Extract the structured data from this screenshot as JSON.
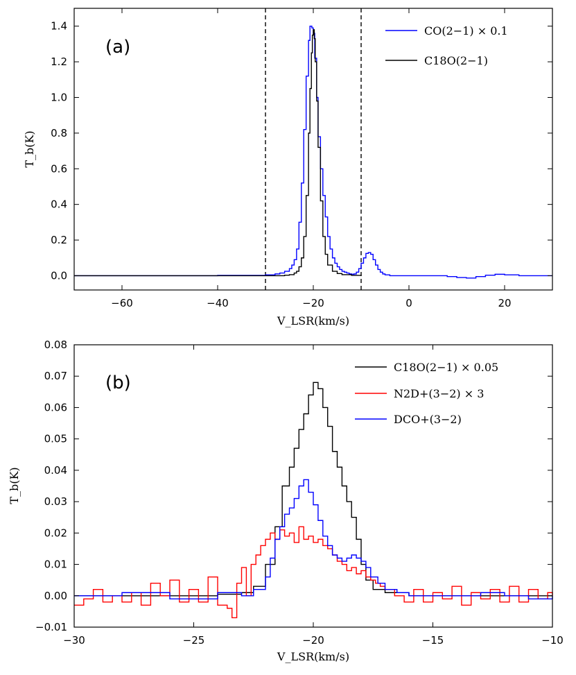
{
  "chart_data": [
    {
      "type": "line",
      "panel_label": "(a)",
      "xlabel": "V_LSR(km/s)",
      "ylabel": "T_b(K)",
      "xlim": [
        -70,
        30
      ],
      "ylim": [
        -0.08,
        1.5
      ],
      "xticks": [
        -60,
        -40,
        -20,
        0,
        20
      ],
      "xtick_labels": [
        "−60",
        "−40",
        "−20",
        "0",
        "20"
      ],
      "yticks": [
        0.0,
        0.2,
        0.4,
        0.6,
        0.8,
        1.0,
        1.2,
        1.4
      ],
      "ytick_labels": [
        "0.0",
        "0.2",
        "0.4",
        "0.6",
        "0.8",
        "1.0",
        "1.2",
        "1.4"
      ],
      "vlines": [
        -30,
        -10
      ],
      "legend_position": "top-right",
      "series": [
        {
          "name": "CO(2−1) × 0.1",
          "color": "#0000ff",
          "x": [
            -70,
            -40,
            -30,
            -28,
            -27,
            -26,
            -25,
            -24.5,
            -24,
            -23.5,
            -23,
            -22.5,
            -22,
            -21.5,
            -21,
            -20.7,
            -20.3,
            -20,
            -19.7,
            -19.3,
            -19,
            -18.5,
            -18,
            -17.5,
            -17,
            -16.5,
            -16,
            -15.5,
            -15,
            -14.5,
            -14,
            -13.5,
            -13,
            -12.5,
            -12,
            -11.5,
            -11,
            -10.5,
            -10,
            -9.5,
            -9,
            -8.5,
            -8,
            -7.5,
            -7,
            -6.5,
            -6,
            -5.5,
            -5,
            -4,
            0,
            5,
            8,
            10,
            12,
            14,
            16,
            18,
            20,
            23,
            30
          ],
          "y": [
            0.0,
            0.002,
            0.005,
            0.01,
            0.015,
            0.025,
            0.04,
            0.06,
            0.09,
            0.15,
            0.3,
            0.52,
            0.82,
            1.12,
            1.32,
            1.4,
            1.39,
            1.36,
            1.22,
            1.0,
            0.78,
            0.6,
            0.45,
            0.33,
            0.22,
            0.15,
            0.1,
            0.07,
            0.05,
            0.035,
            0.025,
            0.02,
            0.015,
            0.01,
            0.008,
            0.01,
            0.02,
            0.04,
            0.07,
            0.1,
            0.125,
            0.13,
            0.12,
            0.09,
            0.06,
            0.035,
            0.02,
            0.01,
            0.005,
            0.0,
            0.0,
            0.0,
            -0.005,
            -0.01,
            -0.013,
            -0.005,
            0.003,
            0.008,
            0.005,
            0.0,
            0.0
          ]
        },
        {
          "name": "C18O(2−1)",
          "color": "#000000",
          "x": [
            -70,
            -30,
            -26,
            -25,
            -24,
            -23.5,
            -23,
            -22.5,
            -22,
            -21.5,
            -21,
            -20.7,
            -20.4,
            -20.2,
            -20,
            -19.8,
            -19.6,
            -19.3,
            -19,
            -18.5,
            -18,
            -17.5,
            -17,
            -16,
            -15,
            -14,
            -12,
            -10
          ],
          "y": [
            0.0,
            0.0,
            0.003,
            0.006,
            0.015,
            0.025,
            0.05,
            0.1,
            0.22,
            0.45,
            0.8,
            1.05,
            1.25,
            1.35,
            1.38,
            1.33,
            1.2,
            0.98,
            0.72,
            0.42,
            0.22,
            0.12,
            0.06,
            0.025,
            0.012,
            0.006,
            0.002,
            0.0
          ]
        }
      ]
    },
    {
      "type": "line",
      "panel_label": "(b)",
      "xlabel": "V_LSR(km/s)",
      "ylabel": "T_b(K)",
      "xlim": [
        -30,
        -10
      ],
      "ylim": [
        -0.01,
        0.08
      ],
      "xticks": [
        -30,
        -25,
        -20,
        -15,
        -10
      ],
      "xtick_labels": [
        "−30",
        "−25",
        "−20",
        "−15",
        "−10"
      ],
      "yticks": [
        -0.01,
        0.0,
        0.01,
        0.02,
        0.03,
        0.04,
        0.05,
        0.06,
        0.07,
        0.08
      ],
      "ytick_labels": [
        "−0.01",
        "0.00",
        "0.01",
        "0.02",
        "0.03",
        "0.04",
        "0.05",
        "0.06",
        "0.07",
        "0.08"
      ],
      "legend_position": "top-right",
      "series": [
        {
          "name": "C18O(2−1) × 0.05",
          "color": "#000000",
          "x": [
            -30,
            -26,
            -24,
            -23,
            -22.5,
            -22,
            -21.6,
            -21.3,
            -21,
            -20.8,
            -20.6,
            -20.4,
            -20.2,
            -20.0,
            -19.8,
            -19.6,
            -19.4,
            -19.2,
            -19,
            -18.8,
            -18.6,
            -18.4,
            -18.2,
            -18,
            -17.8,
            -17.5,
            -17,
            -16,
            -15,
            -13,
            -10
          ],
          "y": [
            0.0,
            0.0,
            0.0005,
            0.001,
            0.003,
            0.01,
            0.022,
            0.035,
            0.041,
            0.047,
            0.053,
            0.058,
            0.064,
            0.068,
            0.066,
            0.06,
            0.054,
            0.046,
            0.041,
            0.035,
            0.03,
            0.025,
            0.018,
            0.01,
            0.005,
            0.002,
            0.001,
            0.0,
            0.0,
            0.0,
            0.0
          ]
        },
        {
          "name": "N2D+(3−2) × 3",
          "color": "#ff0000",
          "x": [
            -30,
            -29.6,
            -29.2,
            -28.8,
            -28.4,
            -28,
            -27.6,
            -27.2,
            -26.8,
            -26.4,
            -26.0,
            -25.6,
            -25.2,
            -24.8,
            -24.4,
            -24.0,
            -23.6,
            -23.4,
            -23.2,
            -23.0,
            -22.8,
            -22.6,
            -22.4,
            -22.2,
            -22.0,
            -21.8,
            -21.6,
            -21.4,
            -21.2,
            -21.0,
            -20.8,
            -20.6,
            -20.4,
            -20.2,
            -20.0,
            -19.8,
            -19.6,
            -19.4,
            -19.2,
            -19.0,
            -18.8,
            -18.6,
            -18.4,
            -18.2,
            -18.0,
            -17.8,
            -17.6,
            -17.4,
            -17.2,
            -17.0,
            -16.6,
            -16.2,
            -15.8,
            -15.4,
            -15.0,
            -14.6,
            -14.2,
            -13.8,
            -13.4,
            -13.0,
            -12.6,
            -12.2,
            -11.8,
            -11.4,
            -11.0,
            -10.6,
            -10.2,
            -10.0
          ],
          "y": [
            -0.003,
            -0.001,
            0.002,
            -0.002,
            0.0,
            -0.002,
            0.001,
            -0.003,
            0.004,
            0.0,
            0.005,
            -0.002,
            0.002,
            -0.002,
            0.006,
            -0.003,
            -0.004,
            -0.007,
            0.004,
            0.009,
            0.0,
            0.01,
            0.013,
            0.016,
            0.018,
            0.02,
            0.018,
            0.021,
            0.019,
            0.02,
            0.017,
            0.022,
            0.018,
            0.019,
            0.017,
            0.018,
            0.016,
            0.015,
            0.013,
            0.011,
            0.01,
            0.008,
            0.009,
            0.007,
            0.008,
            0.006,
            0.005,
            0.004,
            0.003,
            0.002,
            0.0,
            -0.002,
            0.002,
            -0.002,
            0.001,
            -0.001,
            0.003,
            -0.003,
            0.001,
            -0.001,
            0.002,
            -0.002,
            0.003,
            -0.002,
            0.002,
            -0.001,
            0.001,
            0.0
          ]
        },
        {
          "name": "DCO+(3−2)",
          "color": "#0000ff",
          "x": [
            -30,
            -28,
            -26,
            -24,
            -23,
            -22.5,
            -22.0,
            -21.8,
            -21.6,
            -21.4,
            -21.2,
            -21.0,
            -20.8,
            -20.6,
            -20.4,
            -20.2,
            -20.0,
            -19.8,
            -19.6,
            -19.4,
            -19.2,
            -19.0,
            -18.8,
            -18.6,
            -18.4,
            -18.2,
            -18.0,
            -17.8,
            -17.6,
            -17.3,
            -17.0,
            -16.5,
            -16,
            -15,
            -14,
            -13,
            -12,
            -11,
            -10
          ],
          "y": [
            0.0,
            0.001,
            -0.001,
            0.001,
            0.0,
            0.002,
            0.006,
            0.012,
            0.018,
            0.022,
            0.026,
            0.028,
            0.031,
            0.035,
            0.037,
            0.033,
            0.029,
            0.024,
            0.019,
            0.016,
            0.013,
            0.012,
            0.011,
            0.012,
            0.013,
            0.012,
            0.011,
            0.009,
            0.006,
            0.004,
            0.002,
            0.001,
            0.0,
            0.0,
            0.0,
            0.001,
            0.0,
            -0.001,
            0.0
          ]
        }
      ]
    }
  ]
}
